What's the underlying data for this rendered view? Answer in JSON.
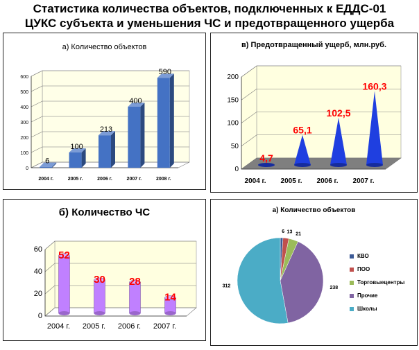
{
  "page": {
    "title_line1": "Статистика количества объектов, подключенных к ЕДДС-01",
    "title_line2": "ЦУКС субъекта и уменьшения ЧС и предотвращенного ущерба"
  },
  "chart_data": [
    {
      "type": "bar",
      "title": "а) Количество объектов",
      "categories": [
        "2004 г.",
        "2005 г.",
        "2006 г.",
        "2007 г.",
        "2008 г."
      ],
      "series": [
        {
          "values": [
            6,
            100,
            213,
            400,
            590
          ]
        }
      ],
      "data_labels": [
        "6",
        "100",
        "213",
        "400",
        "590"
      ],
      "yticks": [
        "0",
        "100",
        "200",
        "300",
        "400",
        "500",
        "600"
      ],
      "ylim": [
        0,
        600
      ],
      "grid": true,
      "colors": {
        "bar": "#4472C4",
        "wall": "#FFFFE8"
      }
    },
    {
      "type": "bar",
      "title": "в) Предотвращенный ущерб, млн.руб.",
      "categories": [
        "2004 г.",
        "2005 г.",
        "2006 г.",
        "2007 г."
      ],
      "series": [
        {
          "values": [
            4.7,
            65.1,
            102.5,
            160.3
          ]
        }
      ],
      "data_labels": [
        "4,7",
        "65,1",
        "102,5",
        "160,3"
      ],
      "yticks": [
        "0",
        "50",
        "100",
        "150",
        "200"
      ],
      "ylim": [
        0,
        200
      ],
      "grid": true,
      "colors": {
        "bar": "#1F3FE0",
        "label": "#FF0000",
        "wall": "#FFFFE0",
        "floor": "#7F7F7F"
      }
    },
    {
      "type": "bar",
      "title": "б) Количество ЧС",
      "categories": [
        "2004 г.",
        "2005 г.",
        "2006 г.",
        "2007 г."
      ],
      "series": [
        {
          "values": [
            52,
            30,
            28,
            14
          ]
        }
      ],
      "data_labels": [
        "52",
        "30",
        "28",
        "14"
      ],
      "yticks": [
        "0",
        "20",
        "40",
        "60"
      ],
      "ylim": [
        0,
        60
      ],
      "grid": true,
      "colors": {
        "bar": "#C080FF",
        "label": "#FF0000",
        "wall": "#FFFFE0"
      }
    },
    {
      "type": "pie",
      "title": "а) Количество объектов",
      "categories": [
        "КВО",
        "ПОО",
        "Торговые центры",
        "Прочие",
        "Школы"
      ],
      "values": [
        6,
        13,
        21,
        238,
        312
      ],
      "data_labels": [
        "6",
        "13",
        "21",
        "238",
        "312"
      ],
      "legend_labels": [
        "КВО",
        "ПОО",
        "Торговыецентры",
        "Прочие",
        "Школы"
      ],
      "legend": "right",
      "colors": [
        "#3C5A96",
        "#C0504D",
        "#9BBB59",
        "#8064A2",
        "#4BACC6"
      ]
    }
  ]
}
